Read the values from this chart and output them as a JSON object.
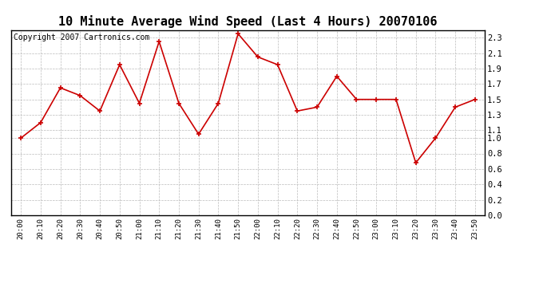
{
  "title": "10 Minute Average Wind Speed (Last 4 Hours) 20070106",
  "copyright": "Copyright 2007 Cartronics.com",
  "x_labels": [
    "20:00",
    "20:10",
    "20:20",
    "20:30",
    "20:40",
    "20:50",
    "21:00",
    "21:10",
    "21:20",
    "21:30",
    "21:40",
    "21:50",
    "22:00",
    "22:10",
    "22:20",
    "22:30",
    "22:40",
    "22:50",
    "23:00",
    "23:10",
    "23:20",
    "23:30",
    "23:40",
    "23:50"
  ],
  "y_values": [
    1.0,
    1.2,
    1.65,
    1.55,
    1.35,
    1.95,
    1.45,
    2.25,
    1.45,
    1.05,
    1.45,
    2.35,
    2.05,
    1.95,
    1.35,
    1.4,
    1.8,
    1.5,
    1.5,
    1.5,
    0.68,
    1.0,
    1.4,
    1.5
  ],
  "ylim": [
    0.0,
    2.4
  ],
  "yticks": [
    0.0,
    0.2,
    0.4,
    0.6,
    0.8,
    1.0,
    1.1,
    1.3,
    1.5,
    1.7,
    1.9,
    2.1,
    2.3
  ],
  "line_color": "#cc0000",
  "marker_color": "#cc0000",
  "bg_color": "#ffffff",
  "grid_color": "#bbbbbb",
  "title_fontsize": 11,
  "copyright_fontsize": 7
}
